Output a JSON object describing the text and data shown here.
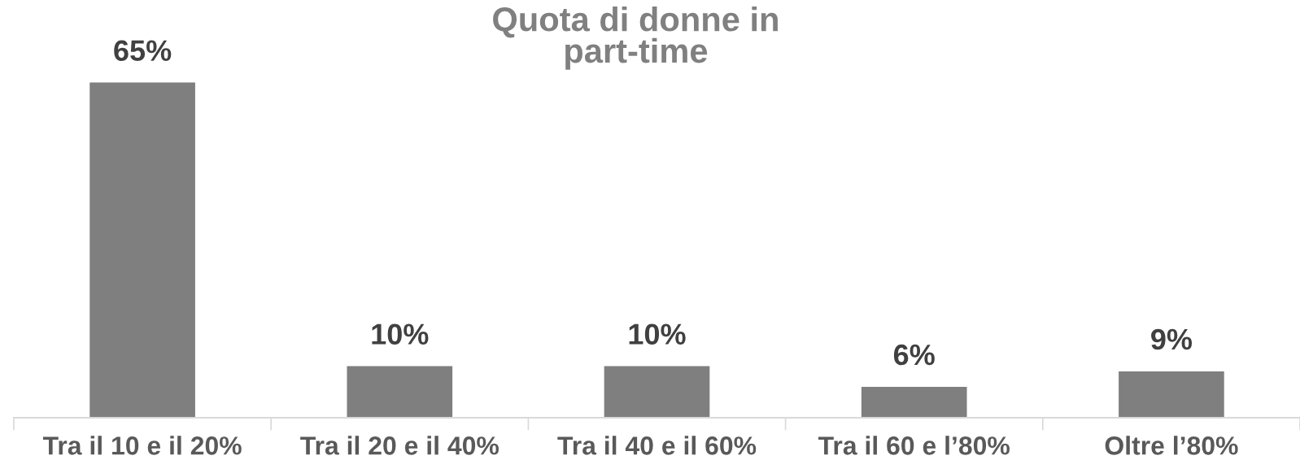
{
  "chart_data": {
    "type": "bar",
    "title": "Quota di donne in\npart-time",
    "categories": [
      "Tra il 10 e il 20%",
      "Tra il 20 e il 40%",
      "Tra il 40 e il 60%",
      "Tra il 60 e l’80%",
      "Oltre l’80%"
    ],
    "values": [
      65,
      10,
      10,
      6,
      9
    ],
    "color": "#7f7f7f",
    "value_labels": [
      "65%",
      "10%",
      "10%",
      "6%",
      "9%"
    ],
    "tick_labels": "x"
  }
}
